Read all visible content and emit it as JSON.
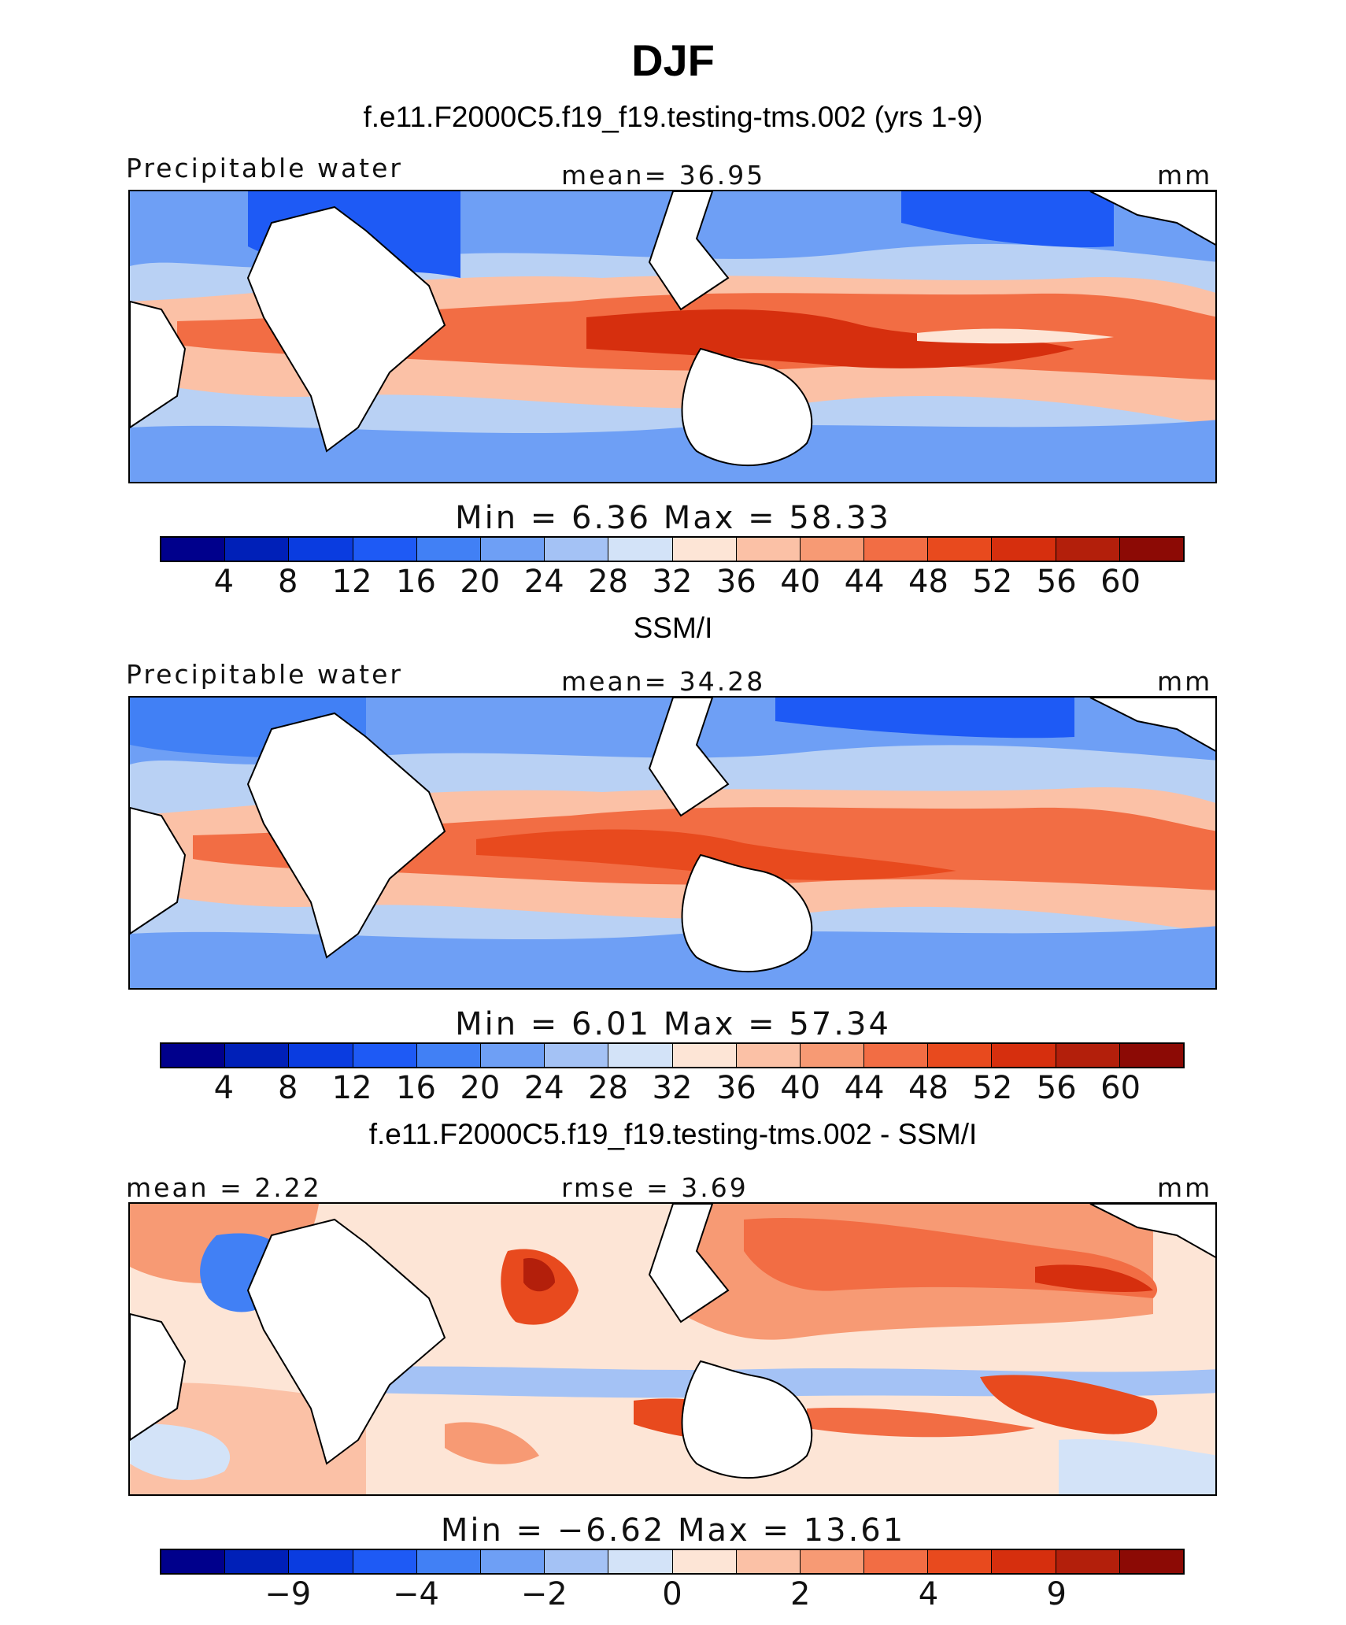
{
  "title": "DJF",
  "palette": [
    "#00008c",
    "#0020b8",
    "#0a3ce0",
    "#1e5af5",
    "#4180f5",
    "#6e9ff5",
    "#a4c2f5",
    "#d3e3f8",
    "#fde5d6",
    "#fbc1a6",
    "#f79a74",
    "#f26d44",
    "#e84a1e",
    "#d62f0e",
    "#b31f0b",
    "#8c0a05"
  ],
  "land_color": "#ffffff",
  "panels": [
    {
      "id": "model",
      "heading": "f.e11.F2000C5.f19_f19.testing-tms.002 (yrs 1-9)",
      "left_label": "Precipitable water",
      "center_label": "mean=  36.95",
      "right_label": "mm",
      "minmax": "Min =    6.36  Max =   58.33",
      "ticks": [
        "4",
        "8",
        "12",
        "16",
        "20",
        "24",
        "28",
        "32",
        "36",
        "40",
        "44",
        "48",
        "52",
        "56",
        "60"
      ]
    },
    {
      "id": "obs",
      "heading": "SSM/I",
      "left_label": "Precipitable water",
      "center_label": "mean=  34.28",
      "right_label": "mm",
      "minmax": "Min =    6.01  Max =   57.34",
      "ticks": [
        "4",
        "8",
        "12",
        "16",
        "20",
        "24",
        "28",
        "32",
        "36",
        "40",
        "44",
        "48",
        "52",
        "56",
        "60"
      ]
    },
    {
      "id": "diff",
      "heading": "f.e11.F2000C5.f19_f19.testing-tms.002 - SSM/I",
      "left_label": "mean =   2.22",
      "center_label": "rmse =    3.69",
      "right_label": "mm",
      "minmax": "Min =   −6.62  Max =   13.61",
      "ticks": [
        "−9",
        "",
        "−4",
        "",
        "−2",
        "",
        "0",
        "",
        "2",
        "",
        "4",
        "",
        "9",
        ""
      ]
    }
  ]
}
